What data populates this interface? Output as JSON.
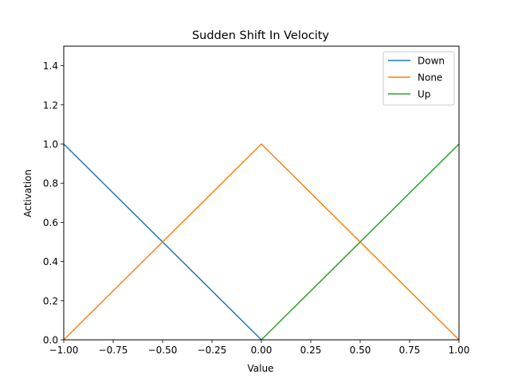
{
  "chart_data": {
    "type": "line",
    "title": "Sudden Shift In Velocity",
    "xlabel": "Value",
    "ylabel": "Activation",
    "xlim": [
      -1.0,
      1.0
    ],
    "ylim": [
      0.0,
      1.5
    ],
    "xticks": [
      -1.0,
      -0.75,
      -0.5,
      -0.25,
      0.0,
      0.25,
      0.5,
      0.75,
      1.0
    ],
    "xtick_labels": [
      "−1.00",
      "−0.75",
      "−0.50",
      "−0.25",
      "0.00",
      "0.25",
      "0.50",
      "0.75",
      "1.00"
    ],
    "yticks": [
      0.0,
      0.2,
      0.4,
      0.6,
      0.8,
      1.0,
      1.2,
      1.4
    ],
    "ytick_labels": [
      "0.0",
      "0.2",
      "0.4",
      "0.6",
      "0.8",
      "1.0",
      "1.2",
      "1.4"
    ],
    "grid": false,
    "legend_position": "top-right",
    "series": [
      {
        "name": "Down",
        "color": "#1f77b4",
        "x": [
          -1.0,
          0.0
        ],
        "y": [
          1.0,
          0.0
        ]
      },
      {
        "name": "None",
        "color": "#ff7f0e",
        "x": [
          -1.0,
          0.0,
          1.0
        ],
        "y": [
          0.0,
          1.0,
          0.0
        ]
      },
      {
        "name": "Up",
        "color": "#2ca02c",
        "x": [
          0.0,
          1.0
        ],
        "y": [
          0.0,
          1.0
        ]
      }
    ]
  }
}
